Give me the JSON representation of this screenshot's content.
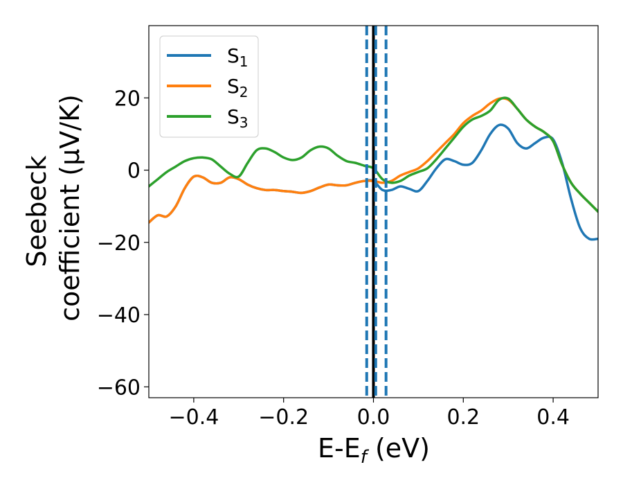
{
  "chart_data": {
    "type": "line",
    "xlabel": {
      "base": "E-E",
      "subscript": "f",
      "suffix": " (eV)"
    },
    "ylabel": {
      "line1": "Seebeck",
      "line2": "coefficient  (μV/K)"
    },
    "xlim": [
      -0.5,
      0.5
    ],
    "ylim": [
      -63,
      40
    ],
    "xticks": [
      -0.4,
      -0.2,
      0.0,
      0.2,
      0.4
    ],
    "xtick_labels": [
      "−0.4",
      "−0.2",
      "0.0",
      "0.2",
      "0.4"
    ],
    "yticks": [
      -60,
      -40,
      -20,
      0,
      20
    ],
    "ytick_labels": [
      "−60",
      "−40",
      "−20",
      "0",
      "20"
    ],
    "legend_position": "top-left",
    "vlines": [
      {
        "x": 0.0,
        "color": "#000000",
        "style": "solid"
      },
      {
        "x": -0.015,
        "color": "#1f77b4",
        "style": "dashed"
      },
      {
        "x": 0.005,
        "color": "#1f77b4",
        "style": "dashed"
      },
      {
        "x": 0.028,
        "color": "#1f77b4",
        "style": "dashed"
      }
    ],
    "series": [
      {
        "label_base": "S",
        "label_sub": "1",
        "color": "#1f77b4",
        "x": [
          -0.5,
          -0.48,
          -0.46,
          -0.44,
          -0.42,
          -0.4,
          -0.38,
          -0.36,
          -0.34,
          -0.32,
          -0.3,
          -0.28,
          -0.26,
          -0.24,
          -0.22,
          -0.2,
          -0.18,
          -0.16,
          -0.14,
          -0.12,
          -0.1,
          -0.08,
          -0.06,
          -0.04,
          -0.02,
          0.0,
          0.02,
          0.04,
          0.06,
          0.08,
          0.1,
          0.12,
          0.14,
          0.16,
          0.18,
          0.2,
          0.22,
          0.24,
          0.26,
          0.28,
          0.3,
          0.32,
          0.34,
          0.36,
          0.38,
          0.4,
          0.42,
          0.44,
          0.46,
          0.48,
          0.5
        ],
        "y": [
          -14.5,
          -12.5,
          -12.8,
          -10,
          -5,
          -1.8,
          -2,
          -3.5,
          -3.5,
          -2,
          -2.5,
          -4,
          -5,
          -5.5,
          -5.5,
          -5.8,
          -6,
          -6.3,
          -5.8,
          -4.8,
          -4,
          -4.2,
          -4.2,
          -3.5,
          -3,
          -3,
          -5.5,
          -5.5,
          -4.5,
          -5.2,
          -5.8,
          -3,
          0.5,
          3,
          2.5,
          1.5,
          2,
          5.5,
          10,
          12.5,
          11.5,
          7.5,
          6,
          7.5,
          9,
          8.5,
          2,
          -8,
          -16,
          -19,
          -19
        ]
      },
      {
        "label_base": "S",
        "label_sub": "2",
        "color": "#ff7f0e",
        "x": [
          -0.5,
          -0.48,
          -0.46,
          -0.44,
          -0.42,
          -0.4,
          -0.38,
          -0.36,
          -0.34,
          -0.32,
          -0.3,
          -0.28,
          -0.26,
          -0.24,
          -0.22,
          -0.2,
          -0.18,
          -0.16,
          -0.14,
          -0.12,
          -0.1,
          -0.08,
          -0.06,
          -0.04,
          -0.02,
          0.0,
          0.02,
          0.04,
          0.06,
          0.08,
          0.1,
          0.12,
          0.14,
          0.16,
          0.18,
          0.2,
          0.22,
          0.24,
          0.26,
          0.28,
          0.3,
          0.32,
          0.34,
          0.36,
          0.38,
          0.4,
          0.42,
          0.44,
          0.46,
          0.48,
          0.5
        ],
        "y": [
          -14.5,
          -12.5,
          -12.8,
          -10,
          -5,
          -1.8,
          -2,
          -3.5,
          -3.5,
          -2,
          -2.5,
          -4,
          -5,
          -5.5,
          -5.5,
          -5.8,
          -6,
          -6.3,
          -5.8,
          -4.8,
          -4,
          -4.2,
          -4.2,
          -3.5,
          -3,
          -3,
          -3.5,
          -3,
          -1.5,
          -0.5,
          0.5,
          2.5,
          5,
          7.5,
          10,
          13,
          15,
          16.5,
          18.5,
          19.8,
          19.5,
          17,
          14,
          12,
          10.5,
          8,
          1.5,
          -3.5,
          -6.5,
          -9,
          -11.5
        ]
      },
      {
        "label_base": "S",
        "label_sub": "3",
        "color": "#2ca02c",
        "x": [
          -0.5,
          -0.48,
          -0.46,
          -0.44,
          -0.42,
          -0.4,
          -0.38,
          -0.36,
          -0.34,
          -0.32,
          -0.3,
          -0.28,
          -0.26,
          -0.24,
          -0.22,
          -0.2,
          -0.18,
          -0.16,
          -0.14,
          -0.12,
          -0.1,
          -0.08,
          -0.06,
          -0.04,
          -0.02,
          0.0,
          0.02,
          0.04,
          0.06,
          0.08,
          0.1,
          0.12,
          0.14,
          0.16,
          0.18,
          0.2,
          0.22,
          0.24,
          0.26,
          0.28,
          0.3,
          0.32,
          0.34,
          0.36,
          0.38,
          0.4,
          0.42,
          0.44,
          0.46,
          0.48,
          0.5
        ],
        "y": [
          -4.5,
          -2.5,
          -0.5,
          1,
          2.5,
          3.3,
          3.5,
          3,
          1,
          -1,
          -1.8,
          2,
          5.5,
          6,
          5,
          3.5,
          2.8,
          3.5,
          5.5,
          6.5,
          6,
          4,
          2.5,
          2,
          1.2,
          0.5,
          -2.5,
          -3.5,
          -3,
          -1.5,
          -0.5,
          0.5,
          3,
          6,
          9,
          12,
          14,
          15,
          16.5,
          19.5,
          19.8,
          17,
          14,
          12,
          10.5,
          8,
          1.5,
          -3.5,
          -6.5,
          -9,
          -11.5
        ]
      }
    ]
  }
}
